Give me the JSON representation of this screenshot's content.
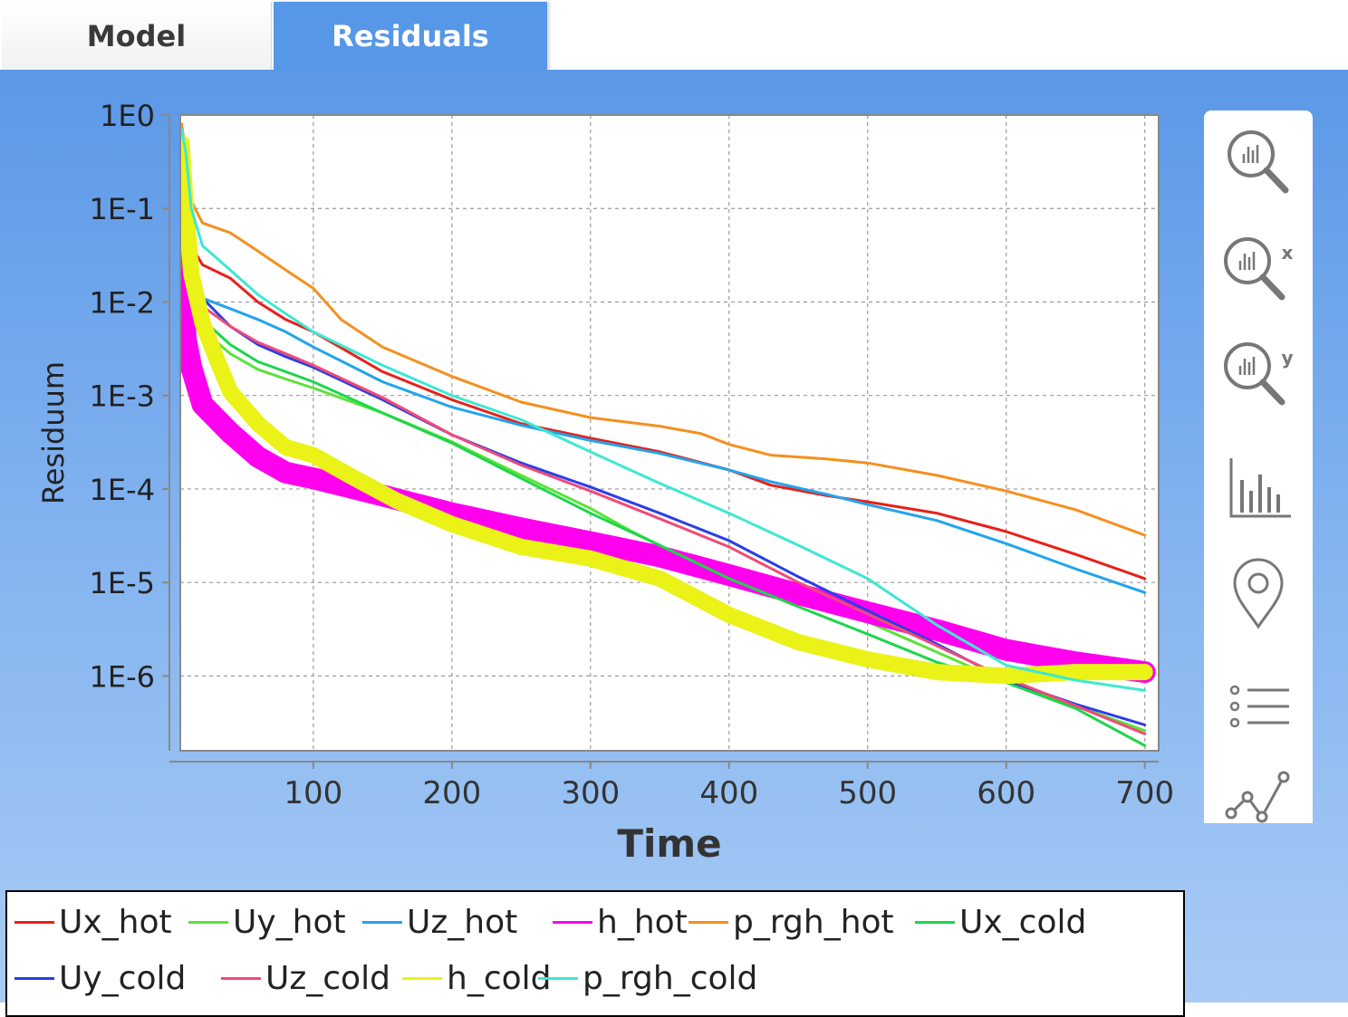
{
  "tabs": [
    {
      "label": "Model",
      "active": false
    },
    {
      "label": "Residuals",
      "active": true
    }
  ],
  "colors": {
    "tab_active": "#5797e7",
    "panel_top": "#5b98e6",
    "panel_bottom": "#a8cbf5"
  },
  "toolbar": {
    "items": [
      {
        "name": "zoom-icon",
        "label": ""
      },
      {
        "name": "zoom-x-icon",
        "label": "x"
      },
      {
        "name": "zoom-y-icon",
        "label": "y"
      },
      {
        "name": "bar-chart-icon",
        "label": ""
      },
      {
        "name": "location-pin-icon",
        "label": ""
      },
      {
        "name": "legend-list-icon",
        "label": ""
      },
      {
        "name": "line-chart-icon",
        "label": ""
      }
    ]
  },
  "chart_data": {
    "type": "line",
    "title": "",
    "xlabel": "Time",
    "ylabel": "Residuum",
    "xlim": [
      4,
      710
    ],
    "ylim_log10": [
      -6.8,
      0
    ],
    "yscale": "log",
    "grid": true,
    "legend_position": "bottom",
    "xticks": [
      100,
      200,
      300,
      400,
      500,
      600,
      700
    ],
    "yticks": [
      "1E0",
      "1E-1",
      "1E-2",
      "1E-3",
      "1E-4",
      "1E-5",
      "1E-6"
    ],
    "series": [
      {
        "name": "Ux_hot",
        "color": "#e8201a",
        "band": 0,
        "x": [
          5,
          8,
          12,
          20,
          40,
          60,
          80,
          100,
          150,
          200,
          250,
          300,
          350,
          400,
          430,
          470,
          500,
          550,
          600,
          650,
          700
        ],
        "y": [
          0.8,
          0.2,
          0.04,
          0.025,
          0.018,
          0.01,
          0.0065,
          0.0048,
          0.0018,
          0.0009,
          0.0005,
          0.00035,
          0.00025,
          0.00016,
          0.00011,
          8.5e-05,
          7.3e-05,
          5.5e-05,
          3.5e-05,
          2e-05,
          1.1e-05
        ]
      },
      {
        "name": "Uy_hot",
        "color": "#5ce23a",
        "band": 0,
        "x": [
          5,
          8,
          12,
          20,
          40,
          60,
          80,
          100,
          150,
          200,
          250,
          300,
          330,
          360,
          400,
          440,
          470,
          500,
          550,
          600,
          650,
          700
        ],
        "y": [
          0.5,
          0.1,
          0.02,
          0.005,
          0.0028,
          0.0019,
          0.0015,
          0.0012,
          0.00065,
          0.00032,
          0.00014,
          6.2e-05,
          3.5e-05,
          2.1e-05,
          1.35e-05,
          8.2e-06,
          5.5e-06,
          3.8e-06,
          1.8e-06,
          8.5e-07,
          4.8e-07,
          2.6e-07
        ]
      },
      {
        "name": "Uz_hot",
        "color": "#22a4ec",
        "band": 0,
        "x": [
          5,
          8,
          12,
          20,
          40,
          60,
          80,
          100,
          150,
          200,
          250,
          300,
          350,
          400,
          430,
          470,
          500,
          550,
          600,
          650,
          700
        ],
        "y": [
          0.6,
          0.1,
          0.02,
          0.011,
          0.0085,
          0.0065,
          0.0048,
          0.0033,
          0.0014,
          0.00075,
          0.00048,
          0.00033,
          0.00024,
          0.00016,
          0.00012,
          8.8e-05,
          6.8e-05,
          4.6e-05,
          2.6e-05,
          1.4e-05,
          7.8e-06
        ]
      },
      {
        "name": "h_hot",
        "color": "#ff00ee",
        "band": 4,
        "x": [
          5,
          8,
          12,
          20,
          40,
          60,
          80,
          100,
          150,
          200,
          250,
          300,
          350,
          400,
          450,
          500,
          550,
          600,
          650,
          700
        ],
        "y": [
          0.03,
          0.004,
          0.002,
          0.0008,
          0.0004,
          0.00022,
          0.00015,
          0.00013,
          8.5e-05,
          5.5e-05,
          3.8e-05,
          2.7e-05,
          1.9e-05,
          1.2e-05,
          7.5e-06,
          4.8e-06,
          3.1e-06,
          1.9e-06,
          1.4e-06,
          1.1e-06
        ]
      },
      {
        "name": "p_rgh_hot",
        "color": "#f5901e",
        "band": 0,
        "x": [
          5,
          8,
          12,
          20,
          40,
          60,
          80,
          100,
          120,
          150,
          200,
          250,
          300,
          350,
          380,
          400,
          430,
          470,
          500,
          550,
          600,
          650,
          700
        ],
        "y": [
          0.8,
          0.4,
          0.12,
          0.07,
          0.055,
          0.035,
          0.022,
          0.014,
          0.0065,
          0.0033,
          0.0016,
          0.00085,
          0.00058,
          0.00047,
          0.00039,
          0.0003,
          0.00023,
          0.00021,
          0.00019,
          0.00014,
          9.5e-05,
          6e-05,
          3.2e-05
        ]
      },
      {
        "name": "Ux_cold",
        "color": "#1ed64a",
        "band": 0,
        "x": [
          5,
          8,
          12,
          20,
          40,
          60,
          80,
          100,
          150,
          200,
          250,
          300,
          350,
          400,
          450,
          500,
          550,
          600,
          650,
          700
        ],
        "y": [
          0.3,
          0.06,
          0.015,
          0.0065,
          0.0035,
          0.0023,
          0.0018,
          0.0014,
          0.00065,
          0.00031,
          0.00013,
          5.5e-05,
          2.5e-05,
          1.1e-05,
          5.5e-06,
          2.8e-06,
          1.4e-06,
          8.5e-07,
          4.5e-07,
          1.8e-07
        ]
      },
      {
        "name": "Uy_cold",
        "color": "#2a3ee6",
        "band": 0,
        "x": [
          5,
          8,
          12,
          20,
          40,
          60,
          80,
          100,
          150,
          200,
          250,
          300,
          350,
          400,
          450,
          500,
          550,
          600,
          650,
          700
        ],
        "y": [
          0.4,
          0.08,
          0.02,
          0.011,
          0.0055,
          0.0035,
          0.0026,
          0.002,
          0.0009,
          0.00038,
          0.00019,
          0.000105,
          5.5e-05,
          2.8e-05,
          1.15e-05,
          5e-06,
          2.2e-06,
          9e-07,
          5e-07,
          3e-07
        ]
      },
      {
        "name": "Uz_cold",
        "color": "#f04a78",
        "band": 0,
        "x": [
          5,
          8,
          12,
          20,
          40,
          60,
          80,
          100,
          150,
          200,
          250,
          300,
          350,
          400,
          450,
          500,
          550,
          600,
          650,
          700
        ],
        "y": [
          0.3,
          0.06,
          0.018,
          0.009,
          0.0055,
          0.0037,
          0.0028,
          0.0021,
          0.00095,
          0.00038,
          0.00018,
          9.5e-05,
          4.8e-05,
          2.4e-05,
          1e-05,
          4.6e-06,
          2.1e-06,
          9.5e-07,
          4.8e-07,
          2.4e-07
        ]
      },
      {
        "name": "h_cold",
        "color": "#eaf218",
        "band": 3,
        "x": [
          5,
          8,
          12,
          20,
          30,
          40,
          60,
          80,
          100,
          130,
          160,
          200,
          250,
          300,
          350,
          400,
          450,
          500,
          550,
          600,
          650,
          700
        ],
        "y": [
          0.5,
          0.1,
          0.02,
          0.006,
          0.0025,
          0.0011,
          0.0005,
          0.00028,
          0.00023,
          0.00013,
          7.5e-05,
          4.2e-05,
          2.4e-05,
          1.8e-05,
          1.1e-05,
          4.5e-06,
          2.3e-06,
          1.5e-06,
          1.1e-06,
          1e-06,
          1.1e-06,
          1.1e-06
        ]
      },
      {
        "name": "p_rgh_cold",
        "color": "#3ee8d2",
        "band": 0,
        "x": [
          5,
          8,
          12,
          20,
          40,
          60,
          80,
          100,
          150,
          200,
          250,
          300,
          350,
          400,
          450,
          500,
          550,
          600,
          650,
          700
        ],
        "y": [
          0.7,
          0.4,
          0.1,
          0.04,
          0.022,
          0.012,
          0.0075,
          0.0048,
          0.0021,
          0.001,
          0.00055,
          0.00025,
          0.000115,
          5.5e-05,
          2.5e-05,
          1.1e-05,
          3.5e-06,
          1.3e-06,
          9e-07,
          7e-07
        ]
      }
    ]
  }
}
